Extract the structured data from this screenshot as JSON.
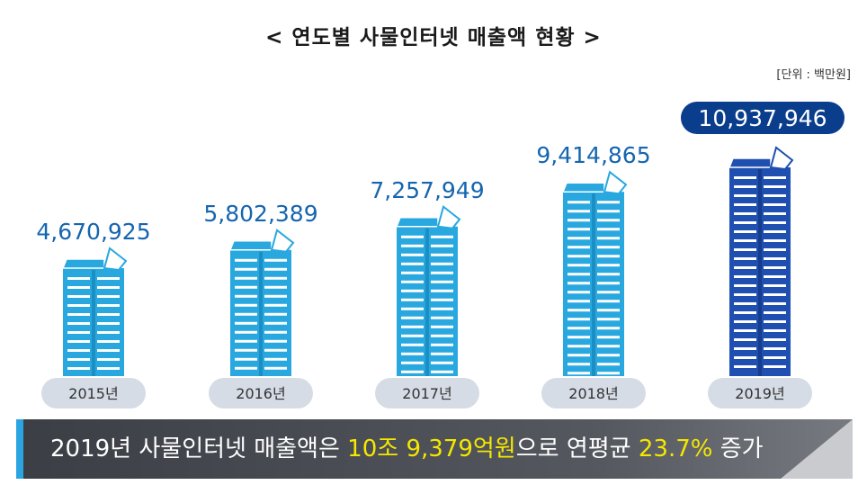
{
  "title": "< 연도별 사물인터넷 매출액 현황 >",
  "unit": "[단위 : 백만원]",
  "chart_data": {
    "type": "bar",
    "categories": [
      "2015년",
      "2016년",
      "2017년",
      "2018년",
      "2019년"
    ],
    "values": [
      4670925,
      5802389,
      7257949,
      9414865,
      10937946
    ],
    "value_labels": [
      "4,670,925",
      "5,802,389",
      "7,257,949",
      "9,414,865",
      "10,937,946"
    ],
    "highlight_index": 4,
    "colors": {
      "bar": "#29a8e0",
      "bar_highlight": "#1f4fb0",
      "label": "#1565b0",
      "highlight_pill": "#0a3e8c",
      "category_pill": "#d6dce6"
    }
  },
  "banner": {
    "part1": "2019년 사물인터넷 매출액은 ",
    "highlight1": "10조 9,379억원",
    "part2": "으로 연평균 ",
    "highlight2": "23.7%",
    "part3": " 증가"
  }
}
